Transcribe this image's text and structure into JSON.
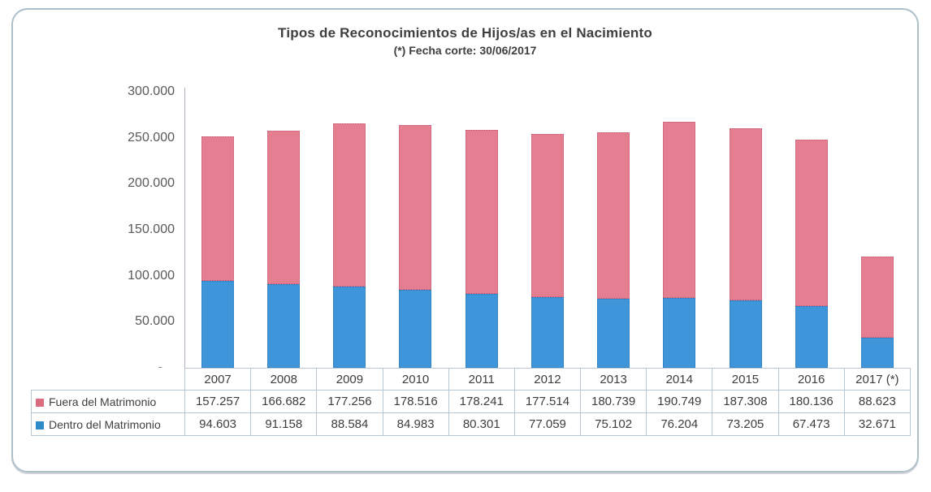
{
  "page": {
    "background": "#ffffff",
    "frame_border_color": "#aebfca"
  },
  "chart_data": {
    "type": "bar",
    "stacked": true,
    "title": "Tipos de Reconocimientos de Hijos/as en el Nacimiento",
    "subtitle": "(*) Fecha corte: 30/06/2017",
    "categories": [
      "2007",
      "2008",
      "2009",
      "2010",
      "2011",
      "2012",
      "2013",
      "2014",
      "2015",
      "2016",
      "2017 (*)"
    ],
    "series": [
      {
        "name": "Fuera del Matrimonio",
        "color": "#e57e91",
        "border_color": "#c05c72",
        "values": [
          157257,
          166682,
          177256,
          178516,
          178241,
          177514,
          180739,
          190749,
          187308,
          180136,
          88623
        ],
        "labels": [
          "157.257",
          "166.682",
          "177.256",
          "178.516",
          "178.241",
          "177.514",
          "180.739",
          "190.749",
          "187.308",
          "180.136",
          "88.623"
        ]
      },
      {
        "name": "Dentro del Matrimonio",
        "color": "#3f95d9",
        "border_color": "#2d76b0",
        "values": [
          94603,
          91158,
          88584,
          84983,
          80301,
          77059,
          75102,
          76204,
          73205,
          67473,
          32671
        ],
        "labels": [
          "94.603",
          "91.158",
          "88.584",
          "84.983",
          "80.301",
          "77.059",
          "75.102",
          "76.204",
          "73.205",
          "67.473",
          "32.671"
        ]
      }
    ],
    "stack_order_bottom_to_top": [
      "Dentro del Matrimonio",
      "Fuera del Matrimonio"
    ],
    "y_axis": {
      "ylim": [
        0,
        300000
      ],
      "ticks": [
        {
          "label": "300.000",
          "value": 300000
        },
        {
          "label": "250.000",
          "value": 250000
        },
        {
          "label": "200.000",
          "value": 200000
        },
        {
          "label": "150.000",
          "value": 150000
        },
        {
          "label": "100.000",
          "value": 100000
        },
        {
          "label": "50.000",
          "value": 50000
        },
        {
          "label": "-",
          "value": 0
        }
      ]
    },
    "grid": false,
    "legend_position": "table-rows-left"
  }
}
